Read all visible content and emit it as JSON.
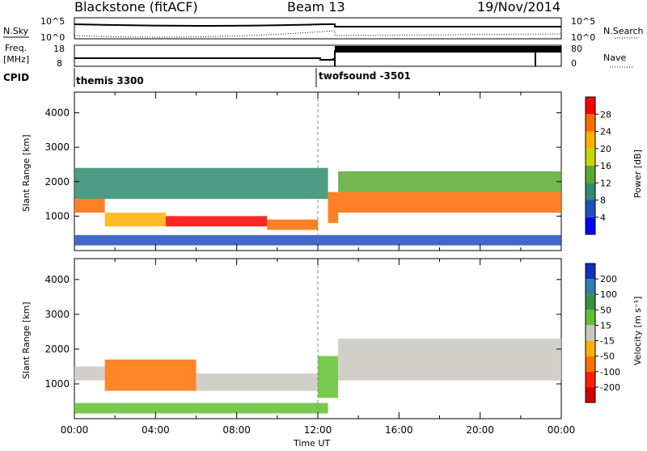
{
  "header": {
    "radar": "Blackstone (fitACF)",
    "beam": "Beam 13",
    "date": "19/Nov/2014"
  },
  "summary": {
    "nsky_label": "N.Sky",
    "nsky_ticks": [
      "10^5",
      "10^0"
    ],
    "nsearch_label": "N.Search",
    "nsearch_ticks": [
      "10^5",
      "10^0"
    ],
    "freq_label": "Freq.",
    "freq_unit": "[MHz]",
    "freq_ticks": [
      "18",
      "8"
    ],
    "nave_label": "Nave",
    "nave_ticks": [
      "80",
      "0"
    ],
    "cpid_label": "CPID",
    "modes": [
      {
        "name": "themis 3300",
        "start_h": 0
      },
      {
        "name": "twofsound -3501",
        "start_h": 12.9
      }
    ]
  },
  "chart_data": [
    {
      "type": "heatmap",
      "parameter": "power",
      "ylabel": "Slant Range [km]",
      "xlabel": "Time UT",
      "xlim": [
        0,
        24
      ],
      "ylim": [
        0,
        4600
      ],
      "x_ticks": [
        "00:00",
        "04:00",
        "08:00",
        "12:00",
        "16:00",
        "20:00",
        "00:00"
      ],
      "y_ticks": [
        1000,
        2000,
        3000,
        4000
      ],
      "colorbar": {
        "label": "Power [dB]",
        "ticks": [
          "4",
          "8",
          "12",
          "16",
          "20",
          "24",
          "28"
        ],
        "colors": [
          "#0000ff",
          "#1f4fbf",
          "#2d8c6e",
          "#5aa832",
          "#c8d400",
          "#ffb000",
          "#ff6a00",
          "#ff0000"
        ]
      },
      "bands": [
        {
          "t0": 0.0,
          "t1": 1.5,
          "r0": 1100,
          "r1": 1500,
          "v": 26
        },
        {
          "t0": 1.5,
          "t1": 4.5,
          "r0": 700,
          "r1": 1100,
          "v": 22
        },
        {
          "t0": 4.5,
          "t1": 9.5,
          "r0": 700,
          "r1": 1000,
          "v": 28
        },
        {
          "t0": 9.5,
          "t1": 12.0,
          "r0": 600,
          "r1": 900,
          "v": 24
        },
        {
          "t0": 0.0,
          "t1": 12.5,
          "r0": 1500,
          "r1": 2400,
          "v": 8
        },
        {
          "t0": 12.5,
          "t1": 13.0,
          "r0": 800,
          "r1": 1700,
          "v": 26
        },
        {
          "t0": 13.0,
          "t1": 24.0,
          "r0": 1100,
          "r1": 1700,
          "v": 24
        },
        {
          "t0": 13.0,
          "t1": 24.0,
          "r0": 1700,
          "r1": 2300,
          "v": 14
        },
        {
          "t0": 0.0,
          "t1": 24.0,
          "r0": 150,
          "r1": 450,
          "v": 6
        }
      ]
    },
    {
      "type": "heatmap",
      "parameter": "velocity",
      "ylabel": "Slant Range [km]",
      "xlabel": "Time UT",
      "xlim": [
        0,
        24
      ],
      "ylim": [
        0,
        4600
      ],
      "x_ticks": [
        "00:00",
        "04:00",
        "08:00",
        "12:00",
        "16:00",
        "20:00",
        "00:00"
      ],
      "y_ticks": [
        1000,
        2000,
        3000,
        4000
      ],
      "colorbar": {
        "label": "Velocity [m s⁻¹]",
        "ticks": [
          "200",
          "100",
          "50",
          "15",
          "-15",
          "-50",
          "-100",
          "-200"
        ],
        "colors": [
          "#1030c0",
          "#2f7fb0",
          "#3a9040",
          "#60c030",
          "#c8c8c0",
          "#ffb000",
          "#ff7000",
          "#ff2000",
          "#d00000"
        ]
      },
      "bands": [
        {
          "t0": 0.0,
          "t1": 1.5,
          "r0": 1100,
          "r1": 1500,
          "v": 0
        },
        {
          "t0": 1.5,
          "t1": 6.0,
          "r0": 800,
          "r1": 1700,
          "v": -60
        },
        {
          "t0": 6.0,
          "t1": 12.0,
          "r0": 800,
          "r1": 1300,
          "v": 0
        },
        {
          "t0": 12.0,
          "t1": 13.0,
          "r0": 600,
          "r1": 1800,
          "v": 40
        },
        {
          "t0": 13.0,
          "t1": 24.0,
          "r0": 1100,
          "r1": 2300,
          "v": 0
        },
        {
          "t0": 0.0,
          "t1": 12.5,
          "r0": 150,
          "r1": 450,
          "v": 30
        }
      ]
    }
  ]
}
